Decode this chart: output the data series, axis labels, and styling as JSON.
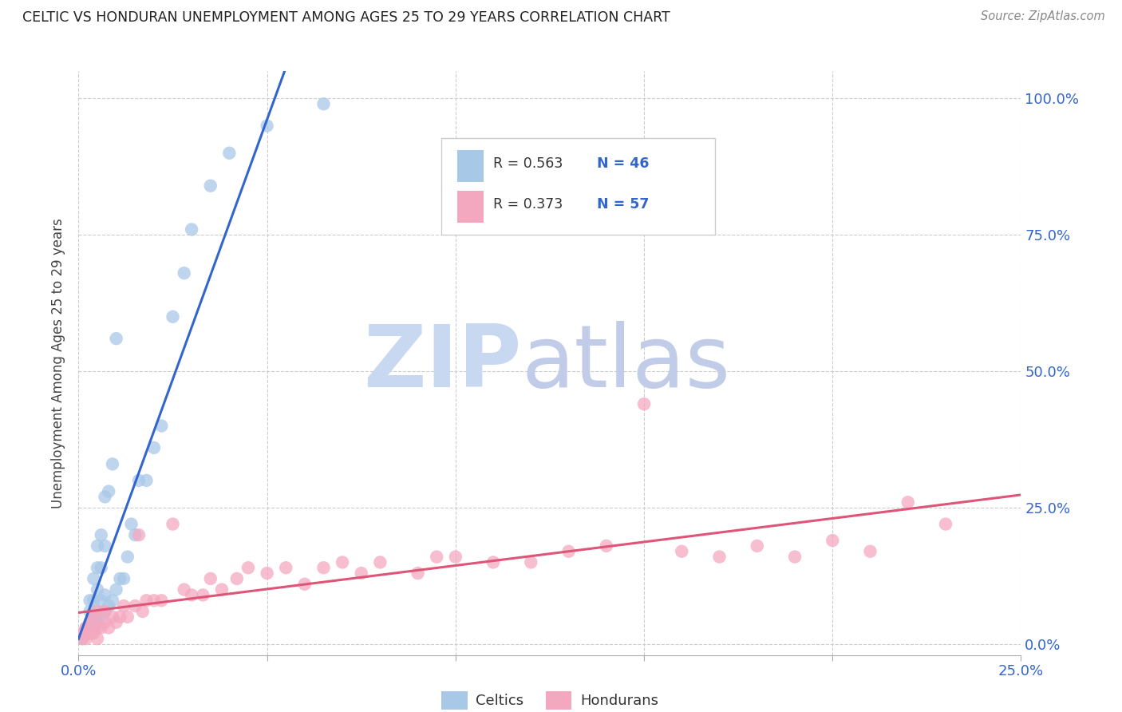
{
  "title": "CELTIC VS HONDURAN UNEMPLOYMENT AMONG AGES 25 TO 29 YEARS CORRELATION CHART",
  "source": "Source: ZipAtlas.com",
  "ylabel": "Unemployment Among Ages 25 to 29 years",
  "yticks_labels": [
    "0.0%",
    "25.0%",
    "50.0%",
    "75.0%",
    "100.0%"
  ],
  "ytick_vals": [
    0.0,
    0.25,
    0.5,
    0.75,
    1.0
  ],
  "xmin": 0.0,
  "xmax": 0.25,
  "ymin": -0.02,
  "ymax": 1.05,
  "celtics_color": "#a8c8e8",
  "hondurans_color": "#f4a8c0",
  "celtics_line_color": "#3366cc",
  "hondurans_line_color": "#dd5577",
  "legend_text_color": "#3366cc",
  "watermark_zip_color": "#c8d8f0",
  "watermark_atlas_color": "#c0cce8",
  "celtics_x": [
    0.001,
    0.002,
    0.002,
    0.003,
    0.003,
    0.003,
    0.003,
    0.004,
    0.004,
    0.004,
    0.004,
    0.005,
    0.005,
    0.005,
    0.005,
    0.005,
    0.006,
    0.006,
    0.006,
    0.006,
    0.007,
    0.007,
    0.007,
    0.007,
    0.008,
    0.008,
    0.009,
    0.009,
    0.01,
    0.01,
    0.011,
    0.012,
    0.013,
    0.014,
    0.015,
    0.016,
    0.018,
    0.02,
    0.022,
    0.025,
    0.028,
    0.03,
    0.035,
    0.04,
    0.05,
    0.065
  ],
  "celtics_y": [
    0.01,
    0.02,
    0.03,
    0.02,
    0.04,
    0.06,
    0.08,
    0.03,
    0.05,
    0.08,
    0.12,
    0.04,
    0.06,
    0.1,
    0.14,
    0.18,
    0.05,
    0.08,
    0.14,
    0.2,
    0.06,
    0.09,
    0.18,
    0.27,
    0.07,
    0.28,
    0.08,
    0.33,
    0.1,
    0.56,
    0.12,
    0.12,
    0.16,
    0.22,
    0.2,
    0.3,
    0.3,
    0.36,
    0.4,
    0.6,
    0.68,
    0.76,
    0.84,
    0.9,
    0.95,
    0.99
  ],
  "hondurans_x": [
    0.001,
    0.001,
    0.002,
    0.002,
    0.003,
    0.003,
    0.004,
    0.004,
    0.005,
    0.005,
    0.005,
    0.006,
    0.007,
    0.007,
    0.008,
    0.009,
    0.01,
    0.011,
    0.012,
    0.013,
    0.015,
    0.016,
    0.017,
    0.018,
    0.02,
    0.022,
    0.025,
    0.028,
    0.03,
    0.033,
    0.035,
    0.038,
    0.042,
    0.045,
    0.05,
    0.055,
    0.06,
    0.065,
    0.07,
    0.075,
    0.08,
    0.09,
    0.095,
    0.1,
    0.11,
    0.12,
    0.13,
    0.14,
    0.15,
    0.16,
    0.17,
    0.18,
    0.19,
    0.2,
    0.21,
    0.22,
    0.23
  ],
  "hondurans_y": [
    0.01,
    0.02,
    0.01,
    0.03,
    0.02,
    0.04,
    0.02,
    0.05,
    0.01,
    0.03,
    0.06,
    0.03,
    0.04,
    0.06,
    0.03,
    0.05,
    0.04,
    0.05,
    0.07,
    0.05,
    0.07,
    0.2,
    0.06,
    0.08,
    0.08,
    0.08,
    0.22,
    0.1,
    0.09,
    0.09,
    0.12,
    0.1,
    0.12,
    0.14,
    0.13,
    0.14,
    0.11,
    0.14,
    0.15,
    0.13,
    0.15,
    0.13,
    0.16,
    0.16,
    0.15,
    0.15,
    0.17,
    0.18,
    0.44,
    0.17,
    0.16,
    0.18,
    0.16,
    0.19,
    0.17,
    0.26,
    0.22
  ]
}
